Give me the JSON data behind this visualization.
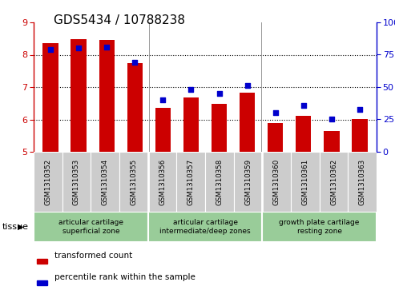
{
  "title": "GDS5434 / 10788238",
  "samples": [
    "GSM1310352",
    "GSM1310353",
    "GSM1310354",
    "GSM1310355",
    "GSM1310356",
    "GSM1310357",
    "GSM1310358",
    "GSM1310359",
    "GSM1310360",
    "GSM1310361",
    "GSM1310362",
    "GSM1310363"
  ],
  "red_values": [
    8.35,
    8.47,
    8.46,
    7.75,
    6.37,
    6.67,
    6.47,
    6.82,
    5.88,
    6.12,
    5.63,
    6.02
  ],
  "blue_values": [
    79,
    80,
    81,
    69,
    40,
    48,
    45,
    51,
    30,
    36,
    25,
    33
  ],
  "ylim_left": [
    5,
    9
  ],
  "ylim_right": [
    0,
    100
  ],
  "yticks_left": [
    5,
    6,
    7,
    8,
    9
  ],
  "yticks_right": [
    0,
    25,
    50,
    75,
    100
  ],
  "yticklabels_right": [
    "0",
    "25",
    "50",
    "75",
    "100%"
  ],
  "red_color": "#cc0000",
  "blue_color": "#0000cc",
  "bar_width": 0.55,
  "tissue_groups": [
    {
      "label": "articular cartilage\nsuperficial zone",
      "spans": [
        0,
        4
      ],
      "color": "#99cc99"
    },
    {
      "label": "articular cartilage\nintermediate/deep zones",
      "spans": [
        4,
        8
      ],
      "color": "#99cc99"
    },
    {
      "label": "growth plate cartilage\nresting zone",
      "spans": [
        8,
        12
      ],
      "color": "#99cc99"
    }
  ],
  "tissue_label": "tissue",
  "legend_red": "transformed count",
  "legend_blue": "percentile rank within the sample",
  "xtick_bg": "#cccccc",
  "grid_dotted_at": [
    6,
    7,
    8
  ],
  "title_fontsize": 11,
  "tick_fontsize": 7,
  "axis_tick_fontsize": 8
}
